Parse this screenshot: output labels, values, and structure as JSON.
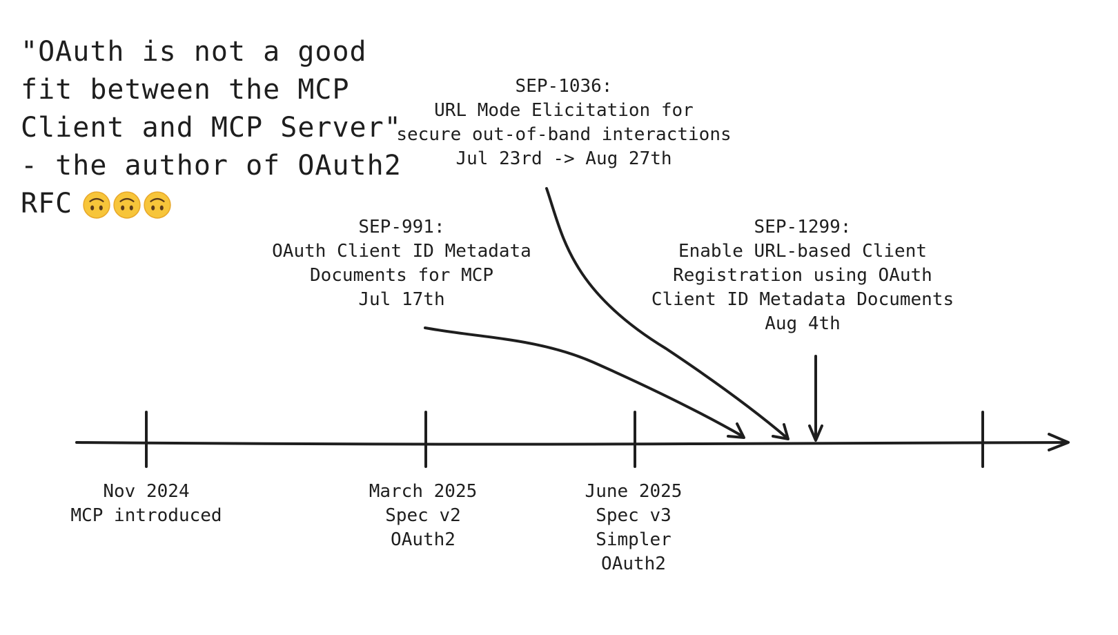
{
  "quote": {
    "lines": [
      "\"OAuth is not a good",
      "fit between the MCP",
      "Client and MCP Server\"",
      "- the author of OAuth2"
    ],
    "last_line": "RFC",
    "emoji_name": "upside-down-face-icon",
    "emoji_count": 3
  },
  "proposals": {
    "sep_1036": {
      "id": "SEP-1036:",
      "line1": "URL Mode Elicitation for",
      "line2": "secure out-of-band interactions",
      "date": "Jul 23rd -> Aug 27th"
    },
    "sep_991": {
      "id": "SEP-991:",
      "line1": "OAuth Client ID Metadata",
      "line2": "Documents for MCP",
      "date": "Jul 17th"
    },
    "sep_1299": {
      "id": "SEP-1299:",
      "line1": "Enable URL-based Client",
      "line2": "Registration using OAuth",
      "line3": "Client ID Metadata Documents",
      "date": "Aug 4th"
    }
  },
  "milestones": {
    "nov_2024": {
      "date": "Nov 2024",
      "line1": "MCP introduced"
    },
    "mar_2025": {
      "date": "March 2025",
      "line1": "Spec v2",
      "line2": "OAuth2"
    },
    "jun_2025": {
      "date": "June 2025",
      "line1": "Spec v3",
      "line2": "Simpler",
      "line3": "OAuth2"
    }
  },
  "colors": {
    "ink": "#1e1e1e",
    "emoji_face": "#f7c53a",
    "emoji_shade": "#e8a82a",
    "emoji_feature": "#5a3a1a"
  }
}
